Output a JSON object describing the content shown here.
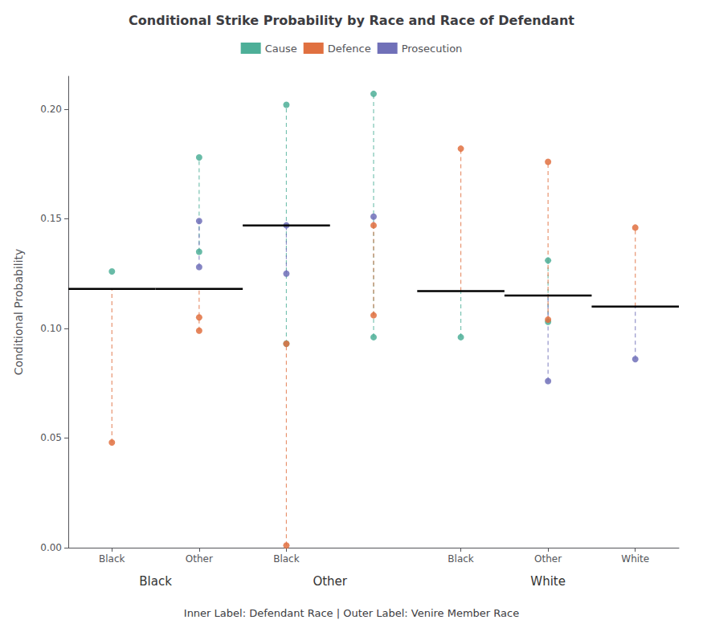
{
  "chart_data": {
    "type": "scatter",
    "title": "Conditional Strike Probability by Race and Race of Defendant",
    "ylabel": "Conditional Probability",
    "xlabel": "Inner Label: Defendant Race | Outer Label: Venire Member Race",
    "categories": [
      "Black",
      "Other",
      "Black",
      null,
      "Black",
      "Other",
      "White"
    ],
    "groups": [
      "Black",
      "Black",
      "Other",
      "Other",
      "White",
      "White",
      "White"
    ],
    "ylim": [
      0.0,
      0.215
    ],
    "yticks": [
      {
        "value": 0.0,
        "label": "0.00"
      },
      0.05,
      {
        "value": 0.1,
        "label": "0.10"
      },
      0.15,
      {
        "value": 0.2,
        "label": "0.20"
      }
    ],
    "grid": false,
    "legend": "top",
    "series": [
      {
        "name": "Cause",
        "color": "#4daf98",
        "marker": "circle",
        "line_style": "dashed",
        "values": [
          [
            0.126
          ],
          [
            0.178,
            0.135
          ],
          [
            0.202,
            0.093
          ],
          [
            0.207,
            0.096
          ],
          [
            0.096
          ],
          [
            0.131,
            0.103
          ],
          []
        ],
        "ranges": [
          null,
          [
            0.135,
            0.178
          ],
          [
            0.093,
            0.202
          ],
          [
            0.096,
            0.207
          ],
          [
            0.096,
            0.117
          ],
          [
            0.103,
            0.131
          ],
          null
        ]
      },
      {
        "name": "Defence",
        "color": "#e07040",
        "marker": "circle",
        "line_style": "dashed",
        "values": [
          [
            0.048
          ],
          [
            0.099,
            0.105
          ],
          [
            0.093,
            0.001
          ],
          [
            0.147,
            0.106
          ],
          [
            0.182
          ],
          [
            0.176,
            0.104
          ],
          [
            0.146
          ]
        ],
        "ranges": [
          [
            0.048,
            0.118
          ],
          [
            0.099,
            0.118
          ],
          [
            0.001,
            0.093
          ],
          [
            0.106,
            0.147
          ],
          [
            0.117,
            0.182
          ],
          [
            0.104,
            0.176
          ],
          [
            0.11,
            0.146
          ]
        ]
      },
      {
        "name": "Prosecution",
        "color": "#7070b8",
        "marker": "circle",
        "line_style": "dashed",
        "values": [
          [],
          [
            0.149,
            0.128
          ],
          [
            0.147,
            0.125
          ],
          [
            0.151
          ],
          [],
          [
            0.076
          ],
          [
            0.086
          ]
        ],
        "ranges": [
          null,
          [
            0.128,
            0.149
          ],
          [
            0.125,
            0.147
          ],
          [
            0.147,
            0.151
          ],
          null,
          [
            0.076,
            0.115
          ],
          [
            0.086,
            0.11
          ]
        ]
      }
    ],
    "baselines": [
      0.118,
      0.118,
      0.147,
      null,
      0.117,
      0.115,
      0.11
    ]
  }
}
